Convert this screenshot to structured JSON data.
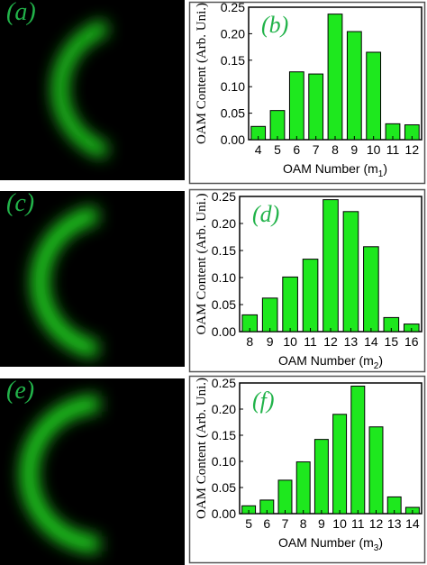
{
  "image_panels": [
    {
      "label": "(a)",
      "ring_color": "#22e522"
    },
    {
      "label": "(c)",
      "ring_color": "#22e522"
    },
    {
      "label": "(e)",
      "ring_color": "#22e522"
    }
  ],
  "colors": {
    "bar_fill": "#1ee81e",
    "bar_stroke": "#000000",
    "panel_letter": "#22b34a"
  },
  "chart_data": [
    {
      "type": "bar",
      "panel_label": "(b)",
      "categories": [
        "4",
        "5",
        "6",
        "7",
        "8",
        "9",
        "10",
        "11",
        "12"
      ],
      "values": [
        0.025,
        0.055,
        0.128,
        0.124,
        0.237,
        0.204,
        0.165,
        0.03,
        0.028
      ],
      "xlabel": "OAM Number (m",
      "xlabel_sub": "1",
      "xlabel_end": ")",
      "ylabel": "OAM Content (Arb. Uni.)",
      "ylim": [
        0,
        0.25
      ],
      "yticks": [
        "0.00",
        "0.05",
        "0.10",
        "0.15",
        "0.20",
        "0.25"
      ],
      "grid": false
    },
    {
      "type": "bar",
      "panel_label": "(d)",
      "categories": [
        "8",
        "9",
        "10",
        "11",
        "12",
        "13",
        "14",
        "15",
        "16"
      ],
      "values": [
        0.031,
        0.062,
        0.101,
        0.134,
        0.244,
        0.222,
        0.157,
        0.026,
        0.014
      ],
      "xlabel": "OAM Number (m",
      "xlabel_sub": "2",
      "xlabel_end": ")",
      "ylabel": "OAM Content (Arb. Uni.)",
      "ylim": [
        0,
        0.25
      ],
      "yticks": [
        "0.00",
        "0.05",
        "0.10",
        "0.15",
        "0.20",
        "0.25"
      ],
      "grid": false
    },
    {
      "type": "bar",
      "panel_label": "(f)",
      "categories": [
        "5",
        "6",
        "7",
        "8",
        "9",
        "10",
        "11",
        "12",
        "13",
        "14"
      ],
      "values": [
        0.015,
        0.026,
        0.064,
        0.099,
        0.142,
        0.19,
        0.244,
        0.166,
        0.032,
        0.012
      ],
      "xlabel": "OAM Number (m",
      "xlabel_sub": "3",
      "xlabel_end": ")",
      "ylabel": "OAM Content (Arb. Uni.)",
      "ylim": [
        0,
        0.25
      ],
      "yticks": [
        "0.00",
        "0.05",
        "0.10",
        "0.15",
        "0.20",
        "0.25"
      ],
      "grid": false
    }
  ]
}
